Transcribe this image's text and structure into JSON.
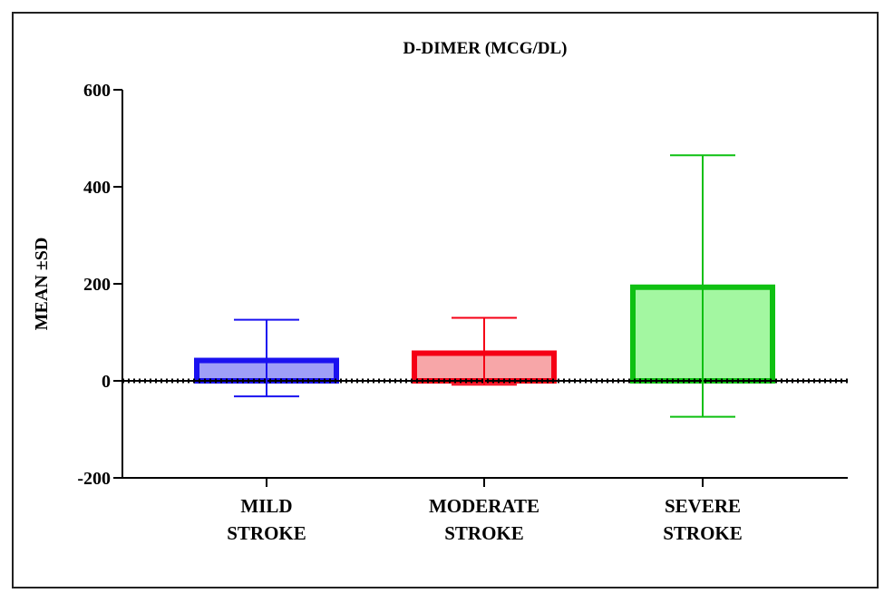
{
  "chart_data": {
    "type": "bar",
    "title": "D-DIMER (MCG/DL)",
    "ylabel": "MEAN ±SD",
    "xlabel": "",
    "ylim": [
      -200,
      600
    ],
    "yticks": [
      600,
      400,
      200,
      0,
      -200
    ],
    "ytick_labels": [
      "600",
      "400",
      "200",
      "0",
      "-200"
    ],
    "categories": [
      {
        "line1": "MILD",
        "line2": "STROKE"
      },
      {
        "line1": "MODERATE",
        "line2": "STROKE"
      },
      {
        "line1": "SEVERE",
        "line2": "STROKE"
      }
    ],
    "values": [
      42,
      57,
      193
    ],
    "error_upper": [
      126,
      130,
      465
    ],
    "error_lower": [
      -32,
      -8,
      -74
    ],
    "colors": [
      {
        "stroke": "#1a12f0",
        "fill": "#9f9ff7"
      },
      {
        "stroke": "#f50015",
        "fill": "#f7a6a8"
      },
      {
        "stroke": "#0fc012",
        "fill": "#a3f7a1"
      }
    ],
    "zero_line": "dotted"
  }
}
